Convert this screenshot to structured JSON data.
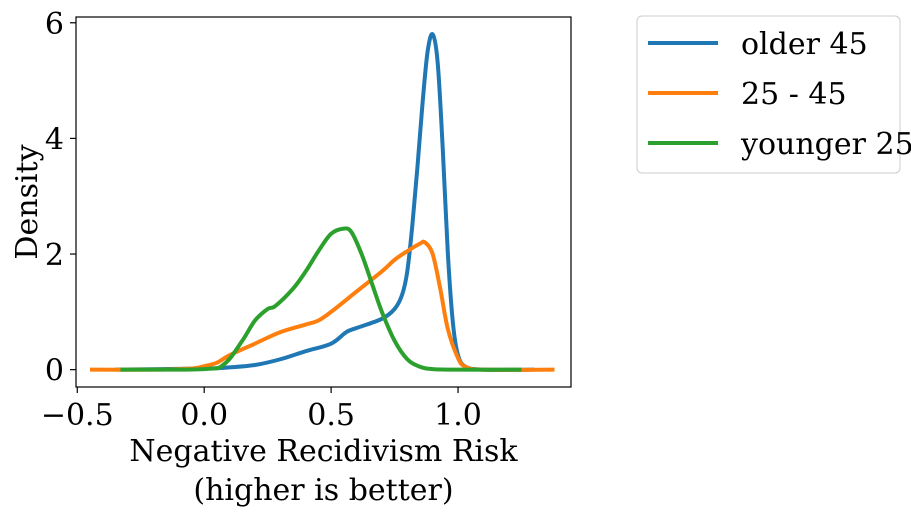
{
  "chart_data": {
    "type": "line",
    "xlabel_lines": [
      "Negative Recidivism Risk",
      "(higher is better)"
    ],
    "ylabel": "Density",
    "xlim": [
      -0.505,
      1.445
    ],
    "ylim": [
      -0.3,
      6.1
    ],
    "x_ticks": [
      -0.5,
      0.0,
      0.5,
      1.0
    ],
    "x_tick_labels": [
      "−0.5",
      "0.0",
      "0.5",
      "1.0"
    ],
    "y_ticks": [
      0,
      2,
      4,
      6
    ],
    "y_tick_labels": [
      "0",
      "2",
      "4",
      "6"
    ],
    "grid": false,
    "legend_position": "outside-top-right",
    "series": [
      {
        "name": "older 45",
        "color": "#1f77b4",
        "points": [
          [
            -0.35,
            0
          ],
          [
            0.0,
            0.02
          ],
          [
            0.1,
            0.04
          ],
          [
            0.2,
            0.08
          ],
          [
            0.3,
            0.18
          ],
          [
            0.4,
            0.32
          ],
          [
            0.5,
            0.45
          ],
          [
            0.56,
            0.65
          ],
          [
            0.6,
            0.72
          ],
          [
            0.7,
            0.88
          ],
          [
            0.75,
            1.05
          ],
          [
            0.78,
            1.3
          ],
          [
            0.8,
            1.7
          ],
          [
            0.82,
            2.5
          ],
          [
            0.84,
            3.5
          ],
          [
            0.86,
            4.6
          ],
          [
            0.88,
            5.5
          ],
          [
            0.9,
            5.8
          ],
          [
            0.92,
            5.3
          ],
          [
            0.94,
            3.8
          ],
          [
            0.96,
            2.0
          ],
          [
            0.98,
            0.8
          ],
          [
            1.0,
            0.25
          ],
          [
            1.03,
            0.05
          ],
          [
            1.1,
            0
          ],
          [
            1.3,
            0
          ]
        ]
      },
      {
        "name": "25 - 45",
        "color": "#ff7f0e",
        "points": [
          [
            -0.45,
            0
          ],
          [
            -0.2,
            0
          ],
          [
            -0.05,
            0.02
          ],
          [
            0.0,
            0.06
          ],
          [
            0.05,
            0.12
          ],
          [
            0.1,
            0.25
          ],
          [
            0.2,
            0.45
          ],
          [
            0.3,
            0.65
          ],
          [
            0.4,
            0.78
          ],
          [
            0.45,
            0.85
          ],
          [
            0.5,
            1.0
          ],
          [
            0.6,
            1.35
          ],
          [
            0.7,
            1.7
          ],
          [
            0.75,
            1.9
          ],
          [
            0.8,
            2.05
          ],
          [
            0.85,
            2.18
          ],
          [
            0.87,
            2.2
          ],
          [
            0.9,
            2.0
          ],
          [
            0.93,
            1.4
          ],
          [
            0.96,
            0.7
          ],
          [
            1.0,
            0.2
          ],
          [
            1.03,
            0.05
          ],
          [
            1.1,
            0
          ],
          [
            1.38,
            0
          ]
        ]
      },
      {
        "name": "younger 25",
        "color": "#2ca02c",
        "points": [
          [
            -0.33,
            0
          ],
          [
            0.0,
            0.01
          ],
          [
            0.08,
            0.1
          ],
          [
            0.15,
            0.5
          ],
          [
            0.2,
            0.85
          ],
          [
            0.25,
            1.05
          ],
          [
            0.28,
            1.1
          ],
          [
            0.35,
            1.4
          ],
          [
            0.4,
            1.7
          ],
          [
            0.45,
            2.05
          ],
          [
            0.5,
            2.35
          ],
          [
            0.55,
            2.44
          ],
          [
            0.58,
            2.38
          ],
          [
            0.62,
            2.0
          ],
          [
            0.66,
            1.5
          ],
          [
            0.7,
            1.0
          ],
          [
            0.75,
            0.5
          ],
          [
            0.8,
            0.18
          ],
          [
            0.85,
            0.05
          ],
          [
            0.9,
            0.01
          ],
          [
            1.0,
            0
          ],
          [
            1.25,
            0
          ]
        ]
      }
    ]
  }
}
